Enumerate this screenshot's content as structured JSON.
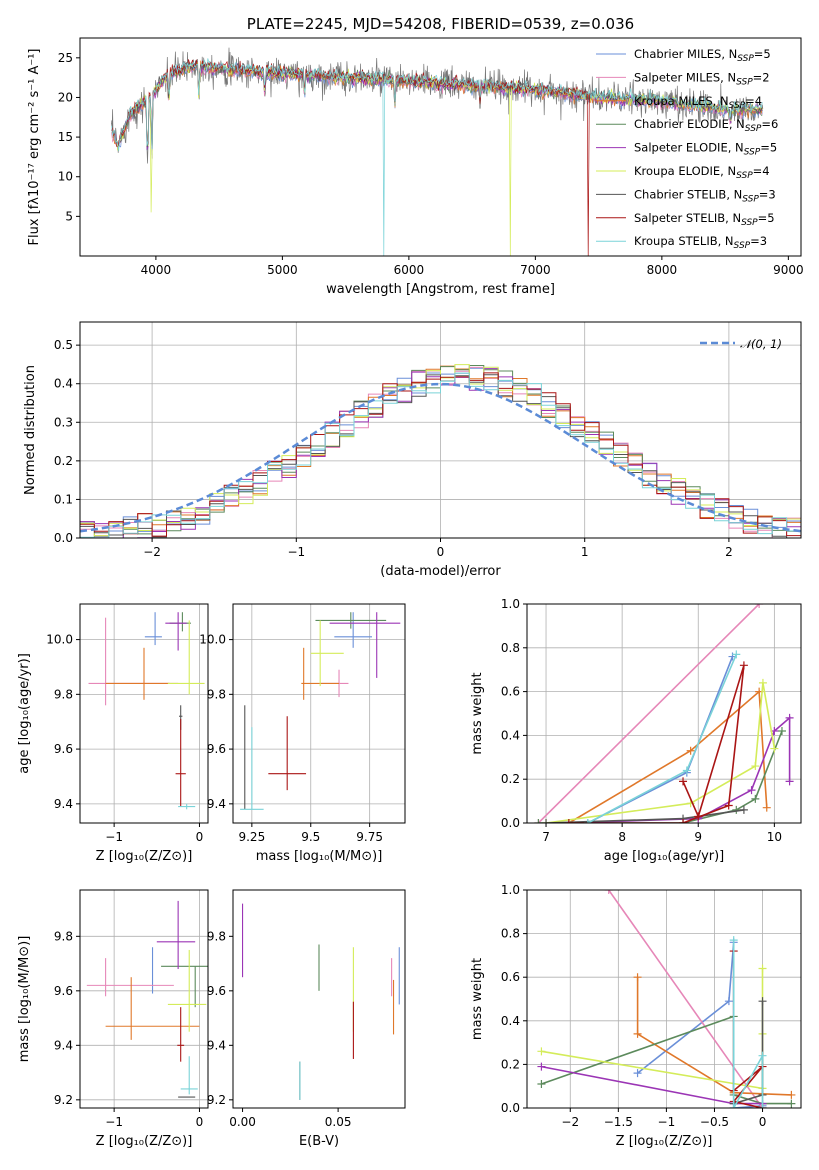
{
  "colors": {
    "Chabrier MILES": "#6a8fd8",
    "Salpeter MILES": "#e687b8",
    "Kroupa MILES": "#e0782a",
    "Chabrier ELODIE": "#5c8a5c",
    "Salpeter ELODIE": "#9b35b5",
    "Kroupa ELODIE": "#d4ec5a",
    "Chabrier STELIB": "#555555",
    "Salpeter STELIB": "#aa1515",
    "Kroupa STELIB": "#7ad3d8"
  },
  "chart_data": [
    {
      "id": "spectrum",
      "type": "line",
      "title": "PLATE=2245, MJD=54208, FIBERID=0539, z=0.036",
      "xlabel": "wavelength [Angstrom, rest frame]",
      "ylabel": "Flux [fλ10⁻¹⁷ erg cm⁻² s⁻¹ A⁻¹]",
      "xlim": [
        3400,
        9100
      ],
      "ylim": [
        0,
        27.5
      ],
      "xticks": [
        4000,
        5000,
        6000,
        7000,
        8000,
        9000
      ],
      "yticks": [
        5,
        10,
        15,
        20,
        25
      ],
      "legend": [
        "Chabrier MILES, N_SSP=5",
        "Salpeter MILES, N_SSP=2",
        "Kroupa MILES, N_SSP=4",
        "Chabrier ELODIE, N_SSP=6",
        "Salpeter ELODIE, N_SSP=5",
        "Kroupa ELODIE, N_SSP=4",
        "Chabrier STELIB, N_SSP=3",
        "Salpeter STELIB, N_SSP=5",
        "Kroupa STELIB, N_SSP=3"
      ],
      "continuum": {
        "x": [
          3650,
          3700,
          3800,
          3950,
          4100,
          4300,
          4600,
          5000,
          5500,
          6000,
          6500,
          7000,
          7500,
          8000,
          8500,
          8800
        ],
        "y": [
          16,
          14,
          18,
          20,
          23,
          24,
          23.5,
          23,
          22.5,
          22,
          21.5,
          21,
          20,
          19.5,
          18.5,
          18.5
        ]
      },
      "absorption": [
        [
          3934,
          9
        ],
        [
          3968,
          8
        ],
        [
          4102,
          4
        ],
        [
          4340,
          4
        ],
        [
          4861,
          3
        ],
        [
          5175,
          3
        ],
        [
          5890,
          3
        ],
        [
          6563,
          2
        ],
        [
          8542,
          2
        ]
      ],
      "drops": [
        {
          "name": "Kroupa ELODIE",
          "x": 3960,
          "y": 5.5
        },
        {
          "name": "Kroupa STELIB",
          "x": 5800,
          "y": 0
        },
        {
          "name": "Kroupa ELODIE",
          "x": 6800,
          "y": 0
        },
        {
          "name": "Salpeter STELIB",
          "x": 7420,
          "y": 0
        }
      ]
    },
    {
      "id": "residuals",
      "type": "histogram",
      "xlabel": "(data-model)/error",
      "ylabel": "Normed distribution",
      "xlim": [
        -2.5,
        2.5
      ],
      "ylim": [
        0,
        0.56
      ],
      "xticks": [
        -2,
        -1,
        0,
        1,
        2
      ],
      "yticks": [
        0.0,
        0.1,
        0.2,
        0.3,
        0.4,
        0.5
      ],
      "grid": true,
      "legend": "𝒩(0, 1)",
      "bin_width": 0.1
    },
    {
      "id": "age_vs_Z",
      "type": "scatter",
      "xlabel": "Z [log₁₀(Z/Z⊙)]",
      "ylabel": "age  [log₁₀(age/yr)]",
      "xlim": [
        -1.4,
        0.1
      ],
      "ylim": [
        9.33,
        10.13
      ],
      "xticks": [
        -1,
        0
      ],
      "yticks": [
        9.4,
        9.6,
        9.8,
        10.0
      ],
      "grid": true,
      "points": [
        {
          "name": "Chabrier MILES",
          "x": -0.52,
          "y": 10.01,
          "xe": [
            0.12,
            0.08
          ],
          "ye": [
            0.03,
            0.09
          ]
        },
        {
          "name": "Salpeter MILES",
          "x": -1.1,
          "y": 9.84,
          "xe": [
            0.2,
            0.85
          ],
          "ye": [
            0.08,
            0.24
          ]
        },
        {
          "name": "Kroupa MILES",
          "x": -0.65,
          "y": 9.84,
          "xe": [
            0.45,
            0.3
          ],
          "ye": [
            0.06,
            0.13
          ]
        },
        {
          "name": "Chabrier ELODIE",
          "x": -0.2,
          "y": 10.06,
          "xe": [
            0.15,
            0.1
          ],
          "ye": [
            0.03,
            0.04
          ]
        },
        {
          "name": "Salpeter ELODIE",
          "x": -0.25,
          "y": 10.06,
          "xe": [
            0.15,
            0.1
          ],
          "ye": [
            0.1,
            0.04
          ]
        },
        {
          "name": "Kroupa ELODIE",
          "x": -0.12,
          "y": 9.84,
          "xe": [
            0.25,
            0.18
          ],
          "ye": [
            0.04,
            0.23
          ]
        },
        {
          "name": "Chabrier STELIB",
          "x": -0.22,
          "y": 9.72,
          "xe": [
            0.02,
            0.02
          ],
          "ye": [
            0.05,
            0.04
          ]
        },
        {
          "name": "Salpeter STELIB",
          "x": -0.22,
          "y": 9.51,
          "xe": [
            0.06,
            0.06
          ],
          "ye": [
            0.12,
            0.2
          ]
        },
        {
          "name": "Kroupa STELIB",
          "x": -0.15,
          "y": 9.39,
          "xe": [
            0.1,
            0.1
          ],
          "ye": [
            0.01,
            0.01
          ]
        }
      ]
    },
    {
      "id": "age_vs_mass",
      "type": "scatter",
      "xlabel": "mass [log₁₀(M/M⊙)]",
      "ylabel": "",
      "xlim": [
        9.17,
        9.9
      ],
      "ylim": [
        9.33,
        10.13
      ],
      "xticks": [
        9.25,
        9.5,
        9.75
      ],
      "yticks": [
        9.4,
        9.6,
        9.8,
        10.0
      ],
      "grid": true,
      "points": [
        {
          "name": "Chabrier MILES",
          "x": 9.68,
          "y": 10.01,
          "xe": [
            0.08,
            0.08
          ],
          "ye": [
            0.04,
            0.09
          ]
        },
        {
          "name": "Salpeter MILES",
          "x": 9.62,
          "y": 9.84,
          "xe": [
            0.08,
            0.04
          ],
          "ye": [
            0.05,
            0.05
          ]
        },
        {
          "name": "Kroupa MILES",
          "x": 9.47,
          "y": 9.84,
          "xe": [
            0.01,
            0.15
          ],
          "ye": [
            0.06,
            0.13
          ]
        },
        {
          "name": "Chabrier ELODIE",
          "x": 9.67,
          "y": 10.07,
          "xe": [
            0.15,
            0.15
          ],
          "ye": [
            0.03,
            0.03
          ]
        },
        {
          "name": "Salpeter ELODIE",
          "x": 9.78,
          "y": 10.06,
          "xe": [
            0.2,
            0.1
          ],
          "ye": [
            0.2,
            0.04
          ]
        },
        {
          "name": "Kroupa ELODIE",
          "x": 9.54,
          "y": 9.95,
          "xe": [
            0.04,
            0.1
          ],
          "ye": [
            0.12,
            0.12
          ]
        },
        {
          "name": "Chabrier STELIB",
          "x": 9.22,
          "y": 9.38,
          "xe": [
            0.0,
            0.0
          ],
          "ye": [
            0.0,
            0.38
          ]
        },
        {
          "name": "Salpeter STELIB",
          "x": 9.4,
          "y": 9.51,
          "xe": [
            0.08,
            0.08
          ],
          "ye": [
            0.06,
            0.21
          ]
        },
        {
          "name": "Kroupa STELIB",
          "x": 9.25,
          "y": 9.38,
          "xe": [
            0.05,
            0.05
          ],
          "ye": [
            0.0,
            0.3
          ]
        }
      ]
    },
    {
      "id": "weight_vs_age",
      "type": "line",
      "xlabel": "age  [log₁₀(age/yr)]",
      "ylabel": "mass weight",
      "xlim": [
        6.75,
        10.35
      ],
      "ylim": [
        0,
        1
      ],
      "xticks": [
        7,
        8,
        9,
        10
      ],
      "yticks": [
        0.0,
        0.2,
        0.4,
        0.6,
        0.8,
        1.0
      ],
      "grid": true,
      "series": [
        {
          "name": "Chabrier MILES",
          "x": [
            7.55,
            8.85,
            9.45
          ],
          "y": [
            0.0,
            0.23,
            0.76
          ]
        },
        {
          "name": "Salpeter MILES",
          "x": [
            6.9,
            9.8
          ],
          "y": [
            0.0,
            1.0
          ]
        },
        {
          "name": "Kroupa MILES",
          "x": [
            7.3,
            8.9,
            9.8,
            9.9
          ],
          "y": [
            0.0,
            0.33,
            0.6,
            0.07
          ]
        },
        {
          "name": "Chabrier ELODIE",
          "x": [
            6.9,
            8.8,
            9.5,
            9.75,
            10.1
          ],
          "y": [
            0.0,
            0.0,
            0.06,
            0.11,
            0.42
          ]
        },
        {
          "name": "Salpeter ELODIE",
          "x": [
            7.3,
            9.0,
            9.7,
            10.0,
            10.2,
            10.2
          ],
          "y": [
            0.0,
            0.02,
            0.15,
            0.42,
            0.48,
            0.19
          ]
        },
        {
          "name": "Kroupa ELODIE",
          "x": [
            7.0,
            8.9,
            9.75,
            9.85,
            10.0
          ],
          "y": [
            0.0,
            0.09,
            0.26,
            0.64,
            0.34
          ]
        },
        {
          "name": "Chabrier STELIB",
          "x": [
            7.0,
            8.8,
            9.6
          ],
          "y": [
            0.0,
            0.02,
            0.06
          ]
        },
        {
          "name": "Salpeter STELIB",
          "x": [
            7.3,
            8.8,
            9.4,
            9.6,
            9.0,
            8.8
          ],
          "y": [
            0.0,
            0.0,
            0.08,
            0.72,
            0.03,
            0.19
          ]
        },
        {
          "name": "Kroupa STELIB",
          "x": [
            7.55,
            8.85,
            9.5
          ],
          "y": [
            0.0,
            0.24,
            0.77
          ]
        }
      ]
    },
    {
      "id": "mass_vs_Z",
      "type": "scatter",
      "xlabel": "Z [log₁₀(Z/Z⊙)]",
      "ylabel": "mass [log₁₀(M/M⊙)]",
      "xlim": [
        -1.4,
        0.1
      ],
      "ylim": [
        9.17,
        9.97
      ],
      "xticks": [
        -1,
        0
      ],
      "yticks": [
        9.2,
        9.4,
        9.6,
        9.8
      ],
      "grid": true,
      "points": [
        {
          "name": "Chabrier MILES",
          "x": -0.55,
          "y": 9.67,
          "xe": [
            0.0,
            0.0
          ],
          "ye": [
            0.08,
            0.09
          ]
        },
        {
          "name": "Salpeter MILES",
          "x": -1.1,
          "y": 9.62,
          "xe": [
            0.22,
            0.8
          ],
          "ye": [
            0.04,
            0.1
          ]
        },
        {
          "name": "Kroupa MILES",
          "x": -0.8,
          "y": 9.47,
          "xe": [
            0.3,
            0.8
          ],
          "ye": [
            0.05,
            0.18
          ]
        },
        {
          "name": "Chabrier ELODIE",
          "x": -0.05,
          "y": 9.69,
          "xe": [
            0.4,
            0.15
          ],
          "ye": [
            0.15,
            0.0
          ]
        },
        {
          "name": "Salpeter ELODIE",
          "x": -0.25,
          "y": 9.78,
          "xe": [
            0.25,
            0.2
          ],
          "ye": [
            0.1,
            0.15
          ]
        },
        {
          "name": "Kroupa ELODIE",
          "x": -0.12,
          "y": 9.55,
          "xe": [
            0.25,
            0.2
          ],
          "ye": [
            0.1,
            0.2
          ]
        },
        {
          "name": "Chabrier STELIB",
          "x": -0.15,
          "y": 9.21,
          "xe": [
            0.1,
            0.1
          ],
          "ye": [
            0.0,
            0.0
          ]
        },
        {
          "name": "Salpeter STELIB",
          "x": -0.22,
          "y": 9.4,
          "xe": [
            0.04,
            0.04
          ],
          "ye": [
            0.06,
            0.14
          ]
        },
        {
          "name": "Kroupa STELIB",
          "x": -0.12,
          "y": 9.24,
          "xe": [
            0.1,
            0.1
          ],
          "ye": [
            0.02,
            0.12
          ]
        }
      ]
    },
    {
      "id": "mass_vs_EBV",
      "type": "scatter",
      "xlabel": "E(B-V)",
      "ylabel": "",
      "xlim": [
        -0.005,
        0.085
      ],
      "ylim": [
        9.17,
        9.97
      ],
      "xticks": [
        0.0,
        0.05
      ],
      "xticklabels": [
        "0.00",
        "0.05"
      ],
      "yticks": [
        9.2,
        9.4,
        9.6,
        9.8
      ],
      "grid": false,
      "points": [
        {
          "name": "Chabrier MILES",
          "x": 0.082,
          "y": 9.6,
          "xe": [
            0,
            0
          ],
          "ye": [
            0.05,
            0.16
          ]
        },
        {
          "name": "Salpeter MILES",
          "x": 0.078,
          "y": 9.62,
          "xe": [
            0,
            0
          ],
          "ye": [
            0.04,
            0.1
          ]
        },
        {
          "name": "Kroupa MILES",
          "x": 0.079,
          "y": 9.5,
          "xe": [
            0,
            0
          ],
          "ye": [
            0.06,
            0.14
          ]
        },
        {
          "name": "Chabrier ELODIE",
          "x": 0.04,
          "y": 9.68,
          "xe": [
            0,
            0
          ],
          "ye": [
            0.08,
            0.09
          ]
        },
        {
          "name": "Salpeter ELODIE",
          "x": 0.0,
          "y": 9.8,
          "xe": [
            0,
            0
          ],
          "ye": [
            0.15,
            0.12
          ]
        },
        {
          "name": "Kroupa ELODIE",
          "x": 0.058,
          "y": 9.6,
          "xe": [
            0,
            0
          ],
          "ye": [
            0.15,
            0.16
          ]
        },
        {
          "name": "Chabrier STELIB",
          "x": 0.03,
          "y": 9.27,
          "xe": [
            0,
            0
          ],
          "ye": [
            0.07,
            0.07
          ]
        },
        {
          "name": "Salpeter STELIB",
          "x": 0.058,
          "y": 9.45,
          "xe": [
            0,
            0
          ],
          "ye": [
            0.1,
            0.11
          ]
        },
        {
          "name": "Kroupa STELIB",
          "x": 0.03,
          "y": 9.26,
          "xe": [
            0,
            0
          ],
          "ye": [
            0.06,
            0.08
          ]
        }
      ]
    },
    {
      "id": "weight_vs_Z",
      "type": "line",
      "xlabel": "Z [log₁₀(Z/Z⊙)]",
      "ylabel": "mass weight",
      "xlim": [
        -2.45,
        0.4
      ],
      "ylim": [
        0,
        1
      ],
      "xticks": [
        -2.0,
        -1.5,
        -1.0,
        -0.5,
        0.0
      ],
      "yticks": [
        0.0,
        0.2,
        0.4,
        0.6,
        0.8,
        1.0
      ],
      "grid": true,
      "series": [
        {
          "name": "Chabrier MILES",
          "x": [
            -1.3,
            -0.35,
            -0.3,
            -0.3,
            0.0
          ],
          "y": [
            0.16,
            0.49,
            0.76,
            0.0,
            0.01
          ]
        },
        {
          "name": "Salpeter MILES",
          "x": [
            -1.6,
            0.0
          ],
          "y": [
            1.0,
            0.0
          ]
        },
        {
          "name": "Kroupa MILES",
          "x": [
            -1.3,
            -1.3,
            -0.3,
            0.3
          ],
          "y": [
            0.6,
            0.34,
            0.07,
            0.06
          ]
        },
        {
          "name": "Chabrier ELODIE",
          "x": [
            -2.3,
            -0.3,
            -0.3,
            0.0,
            0.3
          ],
          "y": [
            0.11,
            0.42,
            0.06,
            0.02,
            0.02
          ]
        },
        {
          "name": "Salpeter ELODIE",
          "x": [
            -2.3,
            -0.3,
            0.0
          ],
          "y": [
            0.19,
            0.02,
            0.02
          ]
        },
        {
          "name": "Kroupa ELODIE",
          "x": [
            -2.3,
            0.0,
            0.0,
            0.0
          ],
          "y": [
            0.26,
            0.09,
            0.34,
            0.64
          ]
        },
        {
          "name": "Chabrier STELIB",
          "x": [
            -0.3,
            0.0,
            0.0
          ],
          "y": [
            0.02,
            0.06,
            0.49
          ]
        },
        {
          "name": "Salpeter STELIB",
          "x": [
            -0.3,
            -0.3,
            0.0,
            -0.3,
            0.0
          ],
          "y": [
            0.72,
            0.08,
            0.19,
            0.03,
            0.0
          ]
        },
        {
          "name": "Kroupa STELIB",
          "x": [
            -0.3,
            -0.3,
            0.0,
            0.0
          ],
          "y": [
            0.77,
            0.0,
            0.24,
            0.0
          ]
        }
      ]
    }
  ]
}
